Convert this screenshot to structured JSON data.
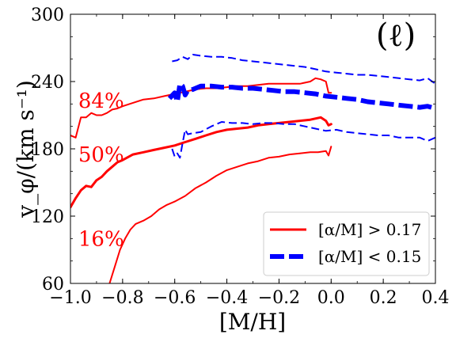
{
  "chart_data": {
    "type": "line",
    "panel_label": "(ℓ)",
    "xlabel": "[M/H]",
    "ylabel": "v_φ/(km s⁻¹)",
    "xlim": [
      -1.0,
      0.4
    ],
    "ylim": [
      60,
      300
    ],
    "x_ticks": [
      -1.0,
      -0.8,
      -0.6,
      -0.4,
      -0.2,
      0.0,
      0.2,
      0.4
    ],
    "x_tick_labels": [
      "−1.0",
      "−0.8",
      "−0.6",
      "−0.4",
      "−0.2",
      "0.0",
      "0.2",
      "0.4"
    ],
    "y_ticks": [
      60,
      120,
      180,
      240,
      300
    ],
    "y_tick_labels": [
      "60",
      "120",
      "180",
      "240",
      "300"
    ],
    "grid": false,
    "legend_position": "bottom-right",
    "colors": {
      "red": "#ff0000",
      "blue": "#0000ff"
    },
    "percentile_labels": [
      {
        "text": "84%",
        "x": -0.97,
        "y": 223
      },
      {
        "text": "50%",
        "x": -0.97,
        "y": 175
      },
      {
        "text": "16%",
        "x": -0.97,
        "y": 100
      }
    ],
    "legend": [
      {
        "label": "[α/M] > 0.17",
        "style": "solid",
        "color": "#ff0000"
      },
      {
        "label": "[α/M] < 0.15",
        "style": "dashed",
        "color": "#0000ff"
      }
    ],
    "series": [
      {
        "group": "[α/M] > 0.17",
        "percentile": "16%",
        "style": "solid",
        "color": "#ff0000",
        "weight": "thin",
        "x": [
          -0.85,
          -0.83,
          -0.81,
          -0.79,
          -0.77,
          -0.75,
          -0.72,
          -0.69,
          -0.66,
          -0.63,
          -0.6,
          -0.56,
          -0.52,
          -0.48,
          -0.44,
          -0.4,
          -0.36,
          -0.32,
          -0.28,
          -0.24,
          -0.2,
          -0.16,
          -0.12,
          -0.08,
          -0.05,
          -0.02,
          -0.01,
          0.0
        ],
        "y": [
          60,
          75,
          90,
          100,
          108,
          113,
          116,
          120,
          126,
          130,
          133,
          138,
          145,
          150,
          156,
          161,
          164,
          167,
          169,
          172,
          173,
          175,
          176,
          177,
          177,
          178,
          174,
          182
        ]
      },
      {
        "group": "[α/M] > 0.17",
        "percentile": "50%",
        "style": "solid",
        "color": "#ff0000",
        "weight": "thick",
        "x": [
          -1.0,
          -0.98,
          -0.96,
          -0.94,
          -0.92,
          -0.9,
          -0.88,
          -0.86,
          -0.84,
          -0.82,
          -0.8,
          -0.76,
          -0.72,
          -0.68,
          -0.64,
          -0.6,
          -0.56,
          -0.52,
          -0.48,
          -0.44,
          -0.4,
          -0.36,
          -0.32,
          -0.28,
          -0.24,
          -0.2,
          -0.16,
          -0.12,
          -0.08,
          -0.04,
          -0.02,
          -0.01,
          0.0
        ],
        "y": [
          128,
          136,
          143,
          147,
          146,
          152,
          155,
          160,
          164,
          168,
          170,
          175,
          177,
          179,
          181,
          183,
          186,
          189,
          192,
          195,
          197,
          198,
          199,
          201,
          202,
          203,
          204,
          205,
          206,
          208,
          205,
          201,
          202
        ]
      },
      {
        "group": "[α/M] > 0.17",
        "percentile": "84%",
        "style": "solid",
        "color": "#ff0000",
        "weight": "thin",
        "x": [
          -1.0,
          -0.98,
          -0.96,
          -0.94,
          -0.92,
          -0.9,
          -0.88,
          -0.86,
          -0.84,
          -0.82,
          -0.8,
          -0.76,
          -0.72,
          -0.68,
          -0.64,
          -0.6,
          -0.56,
          -0.52,
          -0.48,
          -0.44,
          -0.4,
          -0.36,
          -0.32,
          -0.28,
          -0.24,
          -0.2,
          -0.16,
          -0.12,
          -0.08,
          -0.06,
          -0.04,
          -0.02,
          -0.01,
          0.0
        ],
        "y": [
          192,
          190,
          208,
          208,
          212,
          210,
          210,
          212,
          215,
          216,
          218,
          221,
          224,
          225,
          227,
          229,
          231,
          233,
          234,
          234,
          235,
          236,
          236,
          237,
          238,
          238,
          238,
          238,
          240,
          243,
          242,
          240,
          230,
          230
        ]
      },
      {
        "group": "[α/M] < 0.15",
        "percentile": "16%",
        "style": "dashed",
        "color": "#0000ff",
        "weight": "thin",
        "x": [
          -0.61,
          -0.6,
          -0.59,
          -0.58,
          -0.57,
          -0.56,
          -0.55,
          -0.53,
          -0.5,
          -0.46,
          -0.42,
          -0.38,
          -0.34,
          -0.3,
          -0.26,
          -0.22,
          -0.18,
          -0.14,
          -0.1,
          -0.06,
          -0.02,
          0.02,
          0.06,
          0.1,
          0.14,
          0.18,
          0.22,
          0.26,
          0.3,
          0.34,
          0.37,
          0.4
        ],
        "y": [
          180,
          173,
          176,
          172,
          185,
          197,
          193,
          194,
          195,
          200,
          204,
          203,
          203,
          202,
          203,
          203,
          202,
          202,
          200,
          198,
          196,
          197,
          195,
          194,
          193,
          192,
          192,
          190,
          190,
          190,
          187,
          190
        ]
      },
      {
        "group": "[α/M] < 0.15",
        "percentile": "50%",
        "style": "dashed",
        "color": "#0000ff",
        "weight": "thick",
        "x": [
          -0.62,
          -0.6,
          -0.59,
          -0.58,
          -0.57,
          -0.56,
          -0.55,
          -0.53,
          -0.5,
          -0.46,
          -0.42,
          -0.38,
          -0.34,
          -0.3,
          -0.26,
          -0.22,
          -0.18,
          -0.14,
          -0.1,
          -0.06,
          -0.02,
          0.02,
          0.06,
          0.1,
          0.14,
          0.18,
          0.22,
          0.26,
          0.3,
          0.34,
          0.37,
          0.4
        ],
        "y": [
          225,
          230,
          222,
          238,
          236,
          228,
          232,
          233,
          236,
          236,
          235,
          235,
          234,
          234,
          233,
          232,
          231,
          231,
          230,
          229,
          227,
          226,
          225,
          224,
          222,
          221,
          220,
          219,
          218,
          217,
          218,
          216
        ]
      },
      {
        "group": "[α/M] < 0.15",
        "percentile": "84%",
        "style": "dashed",
        "color": "#0000ff",
        "weight": "thin",
        "x": [
          -0.61,
          -0.59,
          -0.57,
          -0.55,
          -0.53,
          -0.5,
          -0.46,
          -0.42,
          -0.38,
          -0.34,
          -0.3,
          -0.26,
          -0.22,
          -0.18,
          -0.14,
          -0.1,
          -0.06,
          -0.02,
          0.02,
          0.06,
          0.1,
          0.14,
          0.18,
          0.22,
          0.26,
          0.3,
          0.34,
          0.37,
          0.4
        ],
        "y": [
          258,
          259,
          262,
          260,
          264,
          263,
          262,
          262,
          261,
          259,
          258,
          257,
          256,
          255,
          254,
          253,
          251,
          249,
          248,
          247,
          246,
          246,
          245,
          244,
          243,
          242,
          241,
          243,
          238
        ]
      }
    ]
  }
}
